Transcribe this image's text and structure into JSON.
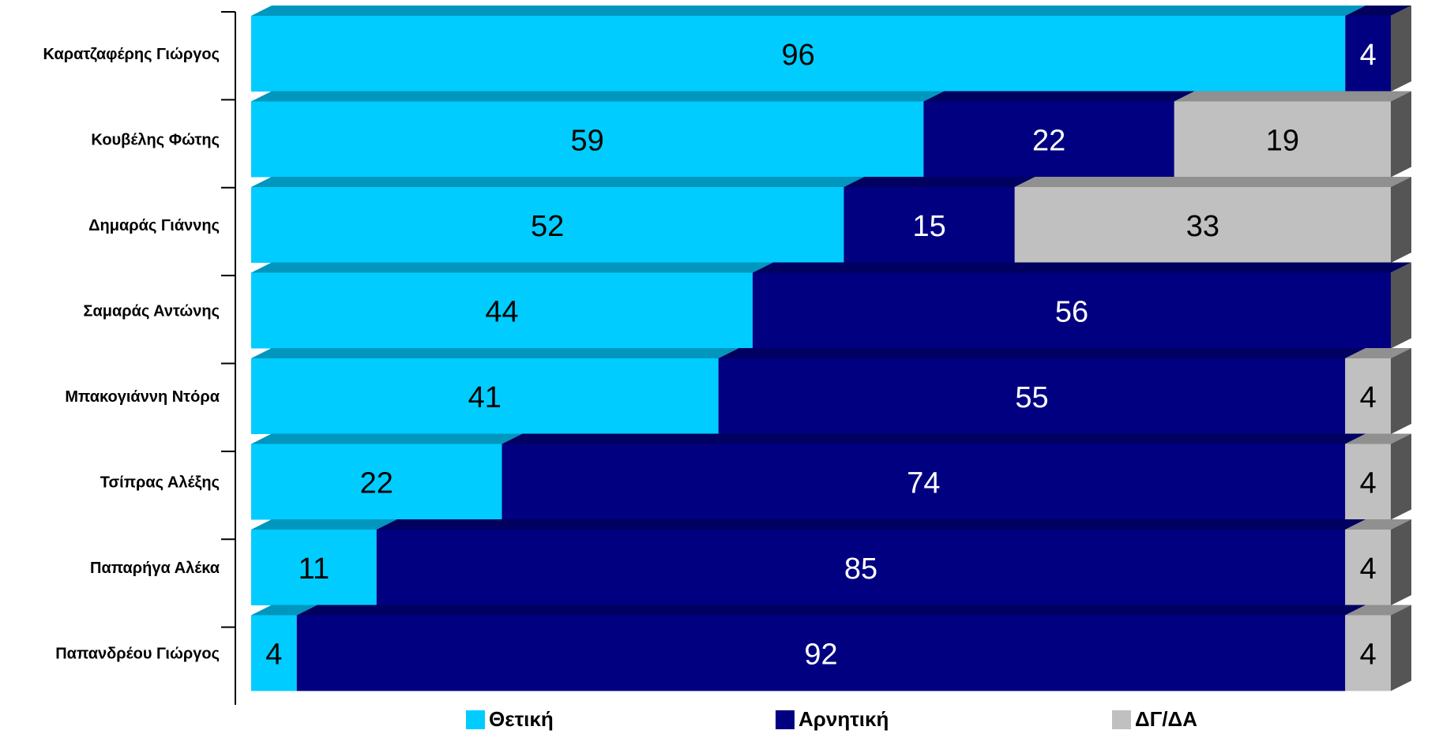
{
  "chart_data": {
    "type": "bar",
    "orientation": "horizontal",
    "stacked": true,
    "categories": [
      "Καρατζαφέρης Γιώργος",
      "Κουβέλης Φώτης",
      "Δημαράς Γιάννης",
      "Σαμαράς Αντώνης",
      "Μπακογιάννη Ντόρα",
      "Τσίπρας Αλέξης",
      "Παπαρήγα Αλέκα",
      "Παπανδρέου Γιώργος"
    ],
    "series": [
      {
        "name": "Θετική",
        "color": "#00CCFF",
        "top_color": "#0096BE",
        "label_color": "#000000",
        "values": [
          96,
          59,
          52,
          44,
          41,
          22,
          11,
          4
        ]
      },
      {
        "name": "Αρνητική",
        "color": "#000080",
        "top_color": "#000060",
        "label_color": "#FFFFFF",
        "values": [
          4,
          22,
          15,
          56,
          55,
          74,
          85,
          92
        ]
      },
      {
        "name": "ΔΓ/ΔΑ",
        "color": "#C0C0C0",
        "top_color": "#909090",
        "label_color": "#000000",
        "values": [
          0,
          19,
          33,
          0,
          4,
          4,
          4,
          4
        ]
      }
    ],
    "xlim": [
      0,
      100
    ],
    "grid": false,
    "legend_position": "bottom",
    "title": "",
    "xlabel": "",
    "ylabel": ""
  }
}
